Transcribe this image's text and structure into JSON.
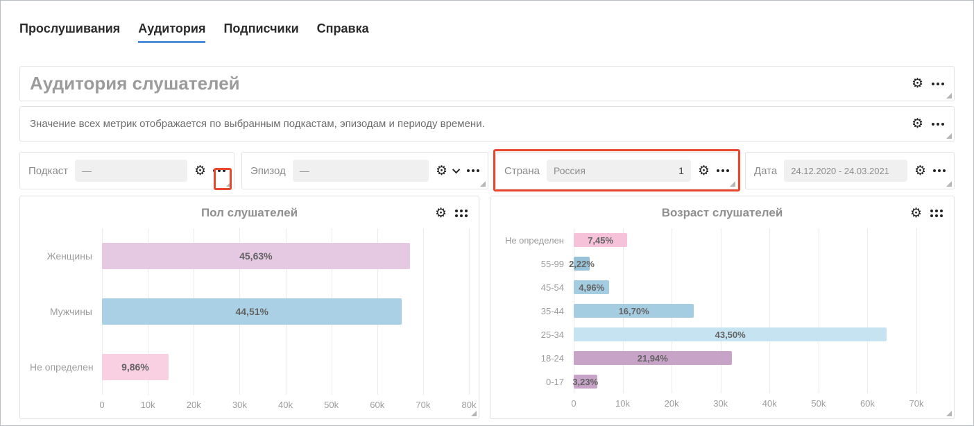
{
  "tabs": [
    {
      "label": "Прослушивания",
      "active": false
    },
    {
      "label": "Аудитория",
      "active": true
    },
    {
      "label": "Подписчики",
      "active": false
    },
    {
      "label": "Справка",
      "active": false
    }
  ],
  "header": {
    "title": "Аудитория слушателей"
  },
  "description": {
    "text": "Значение всех метрик отображается по выбранным подкастам, эпизодам и периоду времени."
  },
  "filters": [
    {
      "label": "Подкаст",
      "value": "—"
    },
    {
      "label": "Эпизод",
      "value": "—"
    },
    {
      "label": "Страна",
      "value": "Россия",
      "badge": "1",
      "highlighted": true
    },
    {
      "label": "Дата",
      "value": "24.12.2020 - 24.03.2021"
    }
  ],
  "icons": {
    "gear": "⚙"
  },
  "colors": {
    "accent": "#4d90d9",
    "highlight": "#e8472e"
  },
  "chart_data": [
    {
      "type": "bar",
      "orientation": "horizontal",
      "title": "Пол слушателей",
      "categories": [
        "Женщины",
        "Мужчины",
        "Не определен"
      ],
      "values": [
        67100,
        65400,
        14500
      ],
      "bar_labels": [
        "45,63%",
        "44,51%",
        "9,86%"
      ],
      "colors": [
        "#e5c9e2",
        "#a9d0e4",
        "#f9cfe2"
      ],
      "xlim": [
        0,
        80000
      ],
      "xticks": [
        "0",
        "10k",
        "20k",
        "30k",
        "40k",
        "50k",
        "60k",
        "70k",
        "80k"
      ],
      "grid": true,
      "legend": "none"
    },
    {
      "type": "bar",
      "orientation": "horizontal",
      "title": "Возраст слушателей",
      "categories": [
        "Не определен",
        "55-99",
        "45-54",
        "35-44",
        "25-34",
        "18-24",
        "0-17"
      ],
      "values": [
        10950,
        3260,
        7290,
        24550,
        63950,
        32250,
        4750
      ],
      "bar_labels": [
        "7,45%",
        "2,22%",
        "4,96%",
        "16,70%",
        "43,50%",
        "21,94%",
        "3,23%"
      ],
      "colors": [
        "#f6c2d9",
        "#97c2da",
        "#a5cde2",
        "#a5cde2",
        "#c6e3f2",
        "#c7a3c8",
        "#c7a3c8"
      ],
      "xlim": [
        0,
        70000
      ],
      "xticks": [
        "0",
        "10k",
        "20k",
        "30k",
        "40k",
        "50k",
        "60k",
        "70k"
      ],
      "grid": true,
      "legend": "none"
    }
  ]
}
